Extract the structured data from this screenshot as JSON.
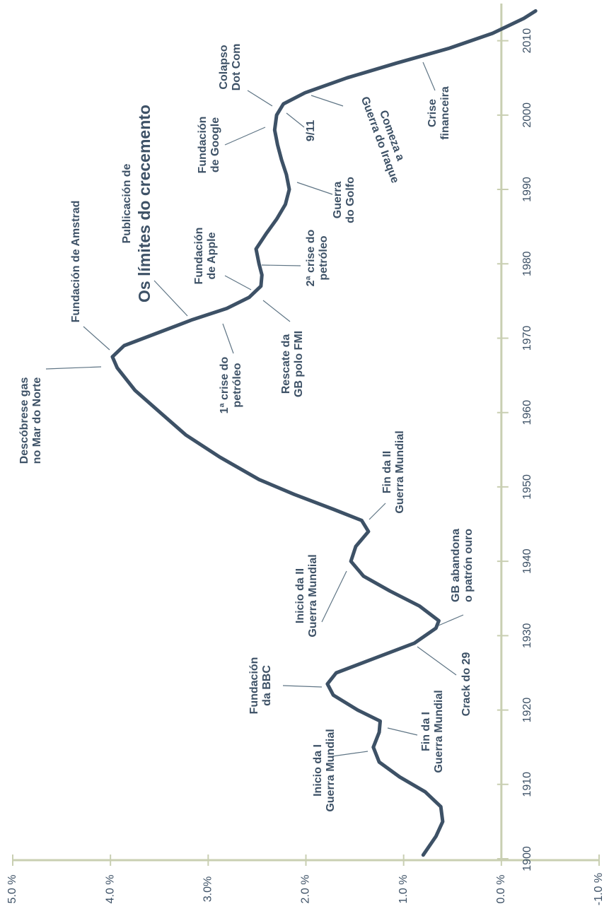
{
  "chart_data": {
    "type": "line",
    "x": [
      1900.5,
      1903,
      1905,
      1907,
      1909,
      1911,
      1913,
      1915,
      1917,
      1918.5,
      1920,
      1922,
      1923.5,
      1925,
      1927,
      1929,
      1931,
      1932,
      1934,
      1936,
      1938,
      1940,
      1942,
      1944,
      1945.5,
      1947,
      1949,
      1951,
      1954,
      1957,
      1960,
      1963,
      1966,
      1967.5,
      1969,
      1971,
      1972.5,
      1974,
      1975.5,
      1977,
      1978.5,
      1980,
      1982,
      1984,
      1986,
      1988,
      1990,
      1992,
      1994,
      1996,
      1998,
      2000,
      2001.5,
      2003,
      2005,
      2007,
      2009,
      2011,
      2013,
      2014
    ],
    "values": [
      0.8,
      0.67,
      0.6,
      0.62,
      0.78,
      1.04,
      1.25,
      1.31,
      1.25,
      1.24,
      1.47,
      1.72,
      1.78,
      1.69,
      1.29,
      0.89,
      0.67,
      0.64,
      0.84,
      1.14,
      1.41,
      1.54,
      1.49,
      1.36,
      1.43,
      1.72,
      2.12,
      2.48,
      2.88,
      3.23,
      3.49,
      3.75,
      3.93,
      3.98,
      3.86,
      3.46,
      3.16,
      2.81,
      2.58,
      2.46,
      2.45,
      2.48,
      2.51,
      2.41,
      2.3,
      2.21,
      2.17,
      2.2,
      2.25,
      2.29,
      2.32,
      2.3,
      2.23,
      2.01,
      1.58,
      1.07,
      0.53,
      0.09,
      -0.23,
      -0.35
    ],
    "color": "#3d5166",
    "xlim": [
      1900,
      2015
    ],
    "xticks": [
      1900,
      1910,
      1920,
      1930,
      1940,
      1950,
      1960,
      1970,
      1980,
      1990,
      2000,
      2010
    ],
    "ylim": [
      -1,
      5
    ],
    "yticks": [
      {
        "value": 5,
        "label": "5.0 %"
      },
      {
        "value": 4,
        "label": "4.0 %"
      },
      {
        "value": 3,
        "label": "3.0%"
      },
      {
        "value": 2,
        "label": "2.0 %"
      },
      {
        "value": 1,
        "label": "1.0 %"
      },
      {
        "value": 0,
        "label": "0.0 %"
      },
      {
        "value": -1,
        "label": "-1.0 %"
      }
    ],
    "annotations": [
      {
        "lines": [
          "Descóbrese gas",
          "no Mar do Norte"
        ]
      },
      {
        "lines": [
          "Fundación de Amstrad"
        ]
      },
      {
        "lines": [
          "Publicación de",
          "Os límites do crecemento"
        ]
      },
      {
        "lines": [
          "Fundación",
          "de Apple"
        ]
      },
      {
        "lines": [
          "1ª crise do",
          "petróleo"
        ]
      },
      {
        "lines": [
          "Rescate da",
          "GB polo FMI"
        ]
      },
      {
        "lines": [
          "2ª crise do",
          "petróleo"
        ]
      },
      {
        "lines": [
          "Fundación",
          "de Google"
        ]
      },
      {
        "lines": [
          "Colapso",
          "Dot Com"
        ]
      },
      {
        "lines": [
          "9/11"
        ]
      },
      {
        "lines": [
          "Comeza a",
          "Guerra do Iraque"
        ]
      },
      {
        "lines": [
          "Guerra",
          "do Golfo"
        ]
      },
      {
        "lines": [
          "Crise",
          "financeira"
        ]
      },
      {
        "lines": [
          "Fin da II",
          "Guerra Mundial"
        ]
      },
      {
        "lines": [
          "Inicio da II",
          "Guerra Mundial"
        ]
      },
      {
        "lines": [
          "GB abandona",
          "o patrón ouro"
        ]
      },
      {
        "lines": [
          "Crack do 29"
        ]
      },
      {
        "lines": [
          "Fundación",
          "da BBC"
        ]
      },
      {
        "lines": [
          "Fin da I",
          "Guerra Mundial"
        ]
      },
      {
        "lines": [
          "Inicio da I",
          "Guerra Mundial"
        ]
      }
    ]
  }
}
